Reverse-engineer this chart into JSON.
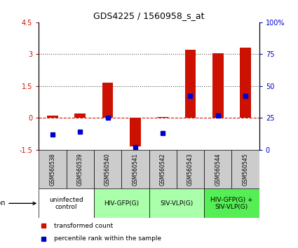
{
  "title": "GDS4225 / 1560958_s_at",
  "samples": [
    "GSM560538",
    "GSM560539",
    "GSM560540",
    "GSM560541",
    "GSM560542",
    "GSM560543",
    "GSM560544",
    "GSM560545"
  ],
  "transformed_counts": [
    0.12,
    0.22,
    1.65,
    -1.35,
    0.05,
    3.2,
    3.05,
    3.3
  ],
  "percentile_ranks": [
    12,
    14,
    25,
    2,
    13,
    42,
    27,
    42
  ],
  "ylim_left": [
    -1.5,
    4.5
  ],
  "ylim_right": [
    0,
    100
  ],
  "yticks_left": [
    -1.5,
    0,
    1.5,
    3,
    4.5
  ],
  "yticks_right": [
    0,
    25,
    50,
    75,
    100
  ],
  "bar_color": "#cc1100",
  "dot_color": "#0000cc",
  "groups": [
    {
      "label": "uninfected\ncontrol",
      "start": 0,
      "end": 2,
      "color": "#ffffff"
    },
    {
      "label": "HIV-GFP(G)",
      "start": 2,
      "end": 4,
      "color": "#aaffaa"
    },
    {
      "label": "SIV-VLP(G)",
      "start": 4,
      "end": 6,
      "color": "#aaffaa"
    },
    {
      "label": "HIV-GFP(G) +\nSIV-VLP(G)",
      "start": 6,
      "end": 8,
      "color": "#55ee55"
    }
  ],
  "sample_bg_color": "#cccccc",
  "legend_items": [
    "transformed count",
    "percentile rank within the sample"
  ],
  "legend_colors": [
    "#cc1100",
    "#0000cc"
  ]
}
